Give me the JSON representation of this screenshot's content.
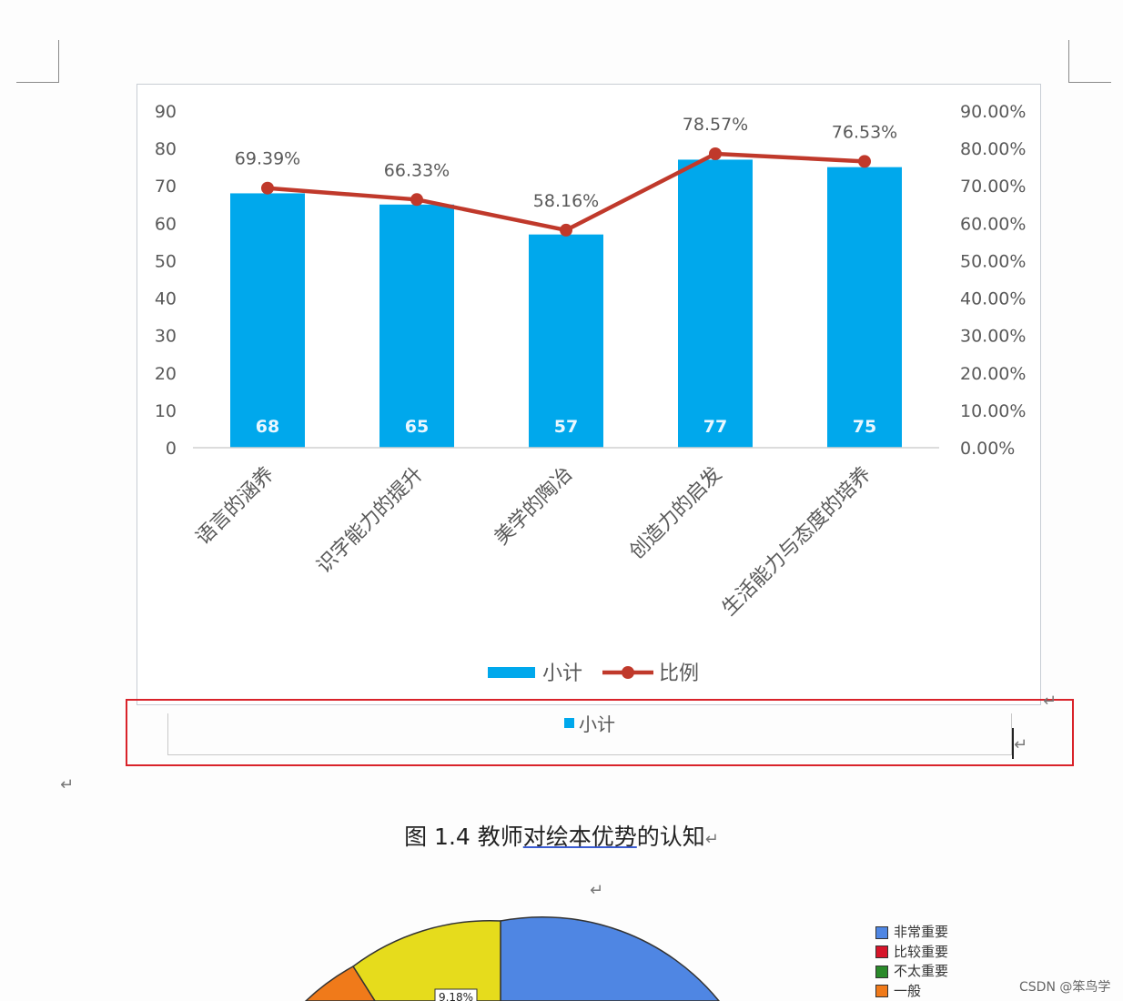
{
  "chart_data": {
    "type": "bar",
    "categories": [
      "语言的涵养",
      "识字能力的提升",
      "美学的陶冶",
      "创造力的启发",
      "生活能力与态度的培养"
    ],
    "series": [
      {
        "name": "小计",
        "type": "bar",
        "axis": "left",
        "values": [
          68,
          65,
          57,
          77,
          75
        ],
        "data_labels": [
          "68",
          "65",
          "57",
          "77",
          "75"
        ],
        "color": "#00a8ec"
      },
      {
        "name": "比例",
        "type": "line",
        "axis": "right",
        "values": [
          69.39,
          66.33,
          58.16,
          78.57,
          76.53
        ],
        "data_labels": [
          "69.39%",
          "66.33%",
          "58.16%",
          "78.57%",
          "76.53%"
        ],
        "color": "#c0392b"
      }
    ],
    "ylim": [
      0,
      90
    ],
    "y_ticks": [
      "0",
      "10",
      "20",
      "30",
      "40",
      "50",
      "60",
      "70",
      "80",
      "90"
    ],
    "y2lim": [
      0,
      90
    ],
    "y2_ticks": [
      "0.00%",
      "10.00%",
      "20.00%",
      "30.00%",
      "40.00%",
      "50.00%",
      "60.00%",
      "70.00%",
      "80.00%",
      "90.00%"
    ],
    "legend_position": "bottom",
    "grid": false
  },
  "colors": {
    "bar": "#00a8ec",
    "line": "#c0392b",
    "highlight_box": "#d9232a"
  },
  "inner_legend": {
    "label": "小计"
  },
  "caption": {
    "prefix": "图 1.4  教师",
    "underlined": "对绘本优势",
    "suffix": "的认知"
  },
  "return_mark": "↵",
  "pie_chart": {
    "type": "pie",
    "partial": true,
    "visible_data_label": "9.18%",
    "legend": [
      {
        "label": "非常重要",
        "color": "#4f86e3"
      },
      {
        "label": "比较重要",
        "color": "#d6152a"
      },
      {
        "label": "不太重要",
        "color": "#2a8a2a"
      },
      {
        "label": "一般",
        "color": "#f07a1a"
      }
    ]
  },
  "watermark": "CSDN @笨鸟学"
}
